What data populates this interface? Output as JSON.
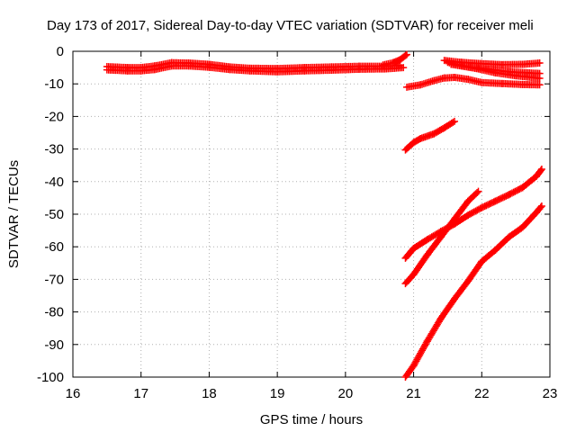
{
  "chart_data": {
    "type": "scatter",
    "title": "Day 173 of 2017, Sidereal Day-to-day VTEC variation (SDTVAR) for receiver meli",
    "xlabel": "GPS time / hours",
    "ylabel": "SDTVAR / TECUs",
    "xlim": [
      16,
      23
    ],
    "ylim": [
      -100,
      0
    ],
    "xticks": [
      16,
      17,
      18,
      19,
      20,
      21,
      22,
      23
    ],
    "yticks": [
      0,
      -10,
      -20,
      -30,
      -40,
      -50,
      -60,
      -70,
      -80,
      -90,
      -100
    ],
    "grid": true,
    "marker": "plus",
    "color": "#ff0000",
    "series": [
      {
        "points": [
          [
            16.5,
            -4.7
          ],
          [
            16.8,
            -5.0
          ],
          [
            17.0,
            -5.0
          ],
          [
            17.2,
            -4.5
          ],
          [
            17.45,
            -3.5
          ],
          [
            17.7,
            -3.6
          ],
          [
            18.0,
            -4.0
          ],
          [
            18.3,
            -4.8
          ],
          [
            18.6,
            -5.2
          ],
          [
            19.0,
            -5.3
          ],
          [
            19.4,
            -5.0
          ],
          [
            19.8,
            -4.8
          ],
          [
            20.2,
            -4.6
          ],
          [
            20.6,
            -4.6
          ],
          [
            20.8,
            -4.4
          ]
        ]
      },
      {
        "points": [
          [
            16.5,
            -5.7
          ],
          [
            16.8,
            -6.0
          ],
          [
            17.0,
            -6.0
          ],
          [
            17.2,
            -5.6
          ],
          [
            17.45,
            -4.5
          ],
          [
            17.7,
            -4.5
          ],
          [
            18.0,
            -4.9
          ],
          [
            18.3,
            -5.6
          ],
          [
            18.6,
            -6.0
          ],
          [
            19.0,
            -6.3
          ],
          [
            19.4,
            -6.0
          ],
          [
            19.8,
            -5.8
          ],
          [
            20.2,
            -5.5
          ],
          [
            20.6,
            -5.4
          ],
          [
            20.85,
            -5.0
          ]
        ]
      },
      {
        "points": [
          [
            20.55,
            -4.2
          ],
          [
            20.7,
            -3.5
          ],
          [
            20.8,
            -2.6
          ],
          [
            20.85,
            -1.8
          ],
          [
            20.9,
            -1.0
          ]
        ]
      },
      {
        "points": [
          [
            21.45,
            -2.8
          ],
          [
            21.7,
            -3.4
          ],
          [
            22.0,
            -3.8
          ],
          [
            22.3,
            -4.1
          ],
          [
            22.6,
            -4.0
          ],
          [
            22.85,
            -3.6
          ]
        ]
      },
      {
        "points": [
          [
            21.5,
            -3.4
          ],
          [
            21.8,
            -4.8
          ],
          [
            22.1,
            -5.5
          ],
          [
            22.4,
            -6.3
          ],
          [
            22.85,
            -6.8
          ]
        ]
      },
      {
        "points": [
          [
            21.55,
            -4.0
          ],
          [
            21.9,
            -5.2
          ],
          [
            22.2,
            -6.6
          ],
          [
            22.5,
            -7.5
          ],
          [
            22.85,
            -8.3
          ]
        ]
      },
      {
        "points": [
          [
            20.9,
            -11.0
          ],
          [
            21.1,
            -10.3
          ],
          [
            21.3,
            -9.0
          ],
          [
            21.45,
            -8.2
          ],
          [
            21.6,
            -8.0
          ],
          [
            21.8,
            -8.6
          ],
          [
            22.0,
            -9.6
          ],
          [
            22.3,
            -9.9
          ],
          [
            22.6,
            -10.2
          ],
          [
            22.85,
            -10.3
          ]
        ]
      },
      {
        "points": [
          [
            20.88,
            -30.3
          ],
          [
            21.0,
            -28.0
          ],
          [
            21.1,
            -26.8
          ],
          [
            21.3,
            -25.3
          ],
          [
            21.45,
            -23.5
          ],
          [
            21.6,
            -21.5
          ]
        ]
      },
      {
        "points": [
          [
            20.88,
            -63.5
          ],
          [
            21.0,
            -60.5
          ],
          [
            21.2,
            -57.8
          ],
          [
            21.4,
            -55.3
          ],
          [
            21.6,
            -53.0
          ],
          [
            21.8,
            -50.3
          ],
          [
            22.0,
            -48.0
          ],
          [
            22.2,
            -46.0
          ],
          [
            22.4,
            -44.0
          ],
          [
            22.6,
            -41.8
          ],
          [
            22.8,
            -38.4
          ],
          [
            22.88,
            -36.2
          ]
        ]
      },
      {
        "points": [
          [
            20.88,
            -71.3
          ],
          [
            21.0,
            -68.5
          ],
          [
            21.2,
            -62.5
          ],
          [
            21.4,
            -57.0
          ],
          [
            21.6,
            -51.5
          ],
          [
            21.8,
            -46.0
          ],
          [
            21.95,
            -43.0
          ]
        ]
      },
      {
        "points": [
          [
            20.88,
            -100.0
          ],
          [
            21.0,
            -96.5
          ],
          [
            21.2,
            -89.0
          ],
          [
            21.4,
            -82.0
          ],
          [
            21.6,
            -76.0
          ],
          [
            21.8,
            -70.5
          ],
          [
            22.0,
            -64.5
          ],
          [
            22.2,
            -61.0
          ],
          [
            22.4,
            -57.0
          ],
          [
            22.6,
            -54.0
          ],
          [
            22.8,
            -49.5
          ],
          [
            22.88,
            -47.5
          ]
        ]
      }
    ]
  }
}
